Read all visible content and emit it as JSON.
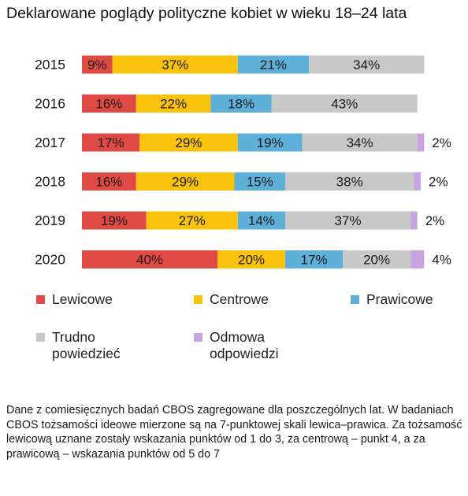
{
  "chart_data": {
    "type": "bar",
    "orientation": "horizontal",
    "stacked": true,
    "title": "Deklarowane poglądy polityczne kobiet w wieku 18–24 lata",
    "categories": [
      "2015",
      "2016",
      "2017",
      "2018",
      "2019",
      "2020"
    ],
    "series": [
      {
        "name": "Lewicowe",
        "color": "#e04a45",
        "values": [
          9,
          16,
          17,
          16,
          19,
          40
        ],
        "labels": [
          "9%",
          "16%",
          "17%",
          "16%",
          "19%",
          "40%"
        ]
      },
      {
        "name": "Centrowe",
        "color": "#f9c20d",
        "values": [
          37,
          22,
          29,
          29,
          27,
          20
        ],
        "labels": [
          "37%",
          "22%",
          "29%",
          "29%",
          "27%",
          "20%"
        ]
      },
      {
        "name": "Prawicowe",
        "color": "#5fb0d8",
        "values": [
          21,
          18,
          19,
          15,
          14,
          17
        ],
        "labels": [
          "21%",
          "18%",
          "19%",
          "15%",
          "14%",
          "17%"
        ]
      },
      {
        "name": "Trudno\npowiedzieć",
        "color": "#c8c8c8",
        "values": [
          34,
          43,
          34,
          38,
          37,
          20
        ],
        "labels": [
          "34%",
          "43%",
          "34%",
          "38%",
          "37%",
          "20%"
        ]
      },
      {
        "name": "Odmowa\nodpowiedzi",
        "color": "#c9a4e2",
        "values": [
          0,
          0,
          2,
          2,
          2,
          4
        ],
        "labels": [
          "",
          "",
          "2%",
          "2%",
          "2%",
          "4%"
        ]
      }
    ],
    "legend_position": "bottom",
    "grid": false
  },
  "note": "Dane z comiesięcznych  badań CBOS zagregowane dla poszczególnych lat. W badaniach CBOS tożsamości ideowe mierzone są na 7-punktowej skali lewica–prawica. Za tożsamość lewicową uznane zostały wskazania punktów od 1 do 3, za centrową – punkt 4, a za prawicową – wskazania punktów od 5 do 7"
}
